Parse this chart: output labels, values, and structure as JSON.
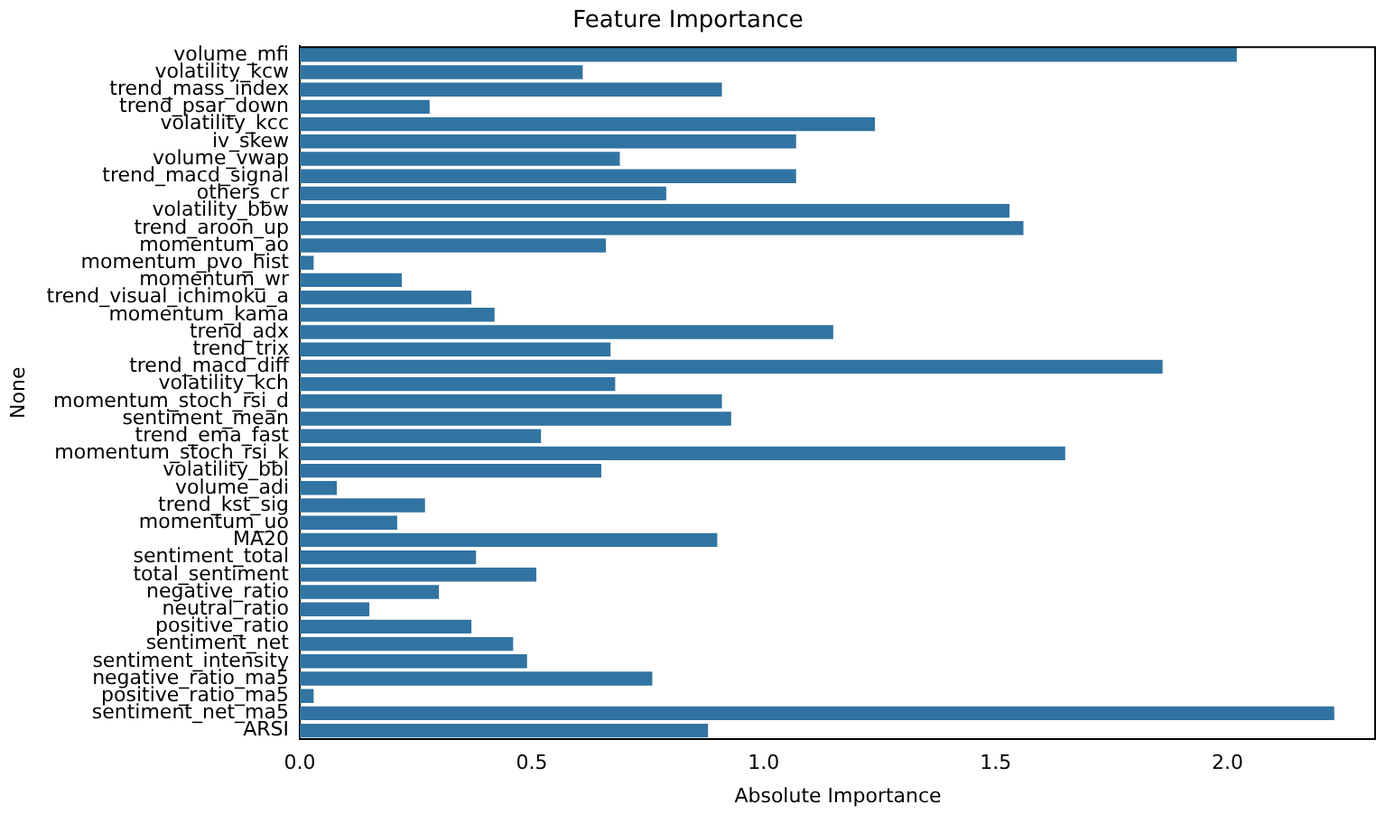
{
  "chart_data": {
    "type": "bar",
    "orientation": "horizontal",
    "title": "Feature Importance",
    "xlabel": "Absolute Importance",
    "ylabel": "None",
    "categories": [
      "volume_mfi",
      "volatility_kcw",
      "trend_mass_index",
      "trend_psar_down",
      "volatility_kcc",
      "iv_skew",
      "volume_vwap",
      "trend_macd_signal",
      "others_cr",
      "volatility_bbw",
      "trend_aroon_up",
      "momentum_ao",
      "momentum_pvo_hist",
      "momentum_wr",
      "trend_visual_ichimoku_a",
      "momentum_kama",
      "trend_adx",
      "trend_trix",
      "trend_macd_diff",
      "volatility_kch",
      "momentum_stoch_rsi_d",
      "sentiment_mean",
      "trend_ema_fast",
      "momentum_stoch_rsi_k",
      "volatility_bbl",
      "volume_adi",
      "trend_kst_sig",
      "momentum_uo",
      "MA20",
      "sentiment_total",
      "total_sentiment",
      "negative_ratio",
      "neutral_ratio",
      "positive_ratio",
      "sentiment_net",
      "sentiment_intensity",
      "negative_ratio_ma5",
      "positive_ratio_ma5",
      "sentiment_net_ma5",
      "ARSI"
    ],
    "values": [
      2.02,
      0.61,
      0.91,
      0.28,
      1.24,
      1.07,
      0.69,
      1.07,
      0.79,
      1.53,
      1.56,
      0.66,
      0.03,
      0.22,
      0.37,
      0.42,
      1.15,
      0.67,
      1.86,
      0.68,
      0.91,
      0.93,
      0.52,
      1.65,
      0.65,
      0.08,
      0.27,
      0.21,
      0.9,
      0.38,
      0.51,
      0.3,
      0.15,
      0.37,
      0.46,
      0.49,
      0.76,
      0.03,
      2.23,
      0.88
    ],
    "color": "#3274a1",
    "xlim": [
      0,
      2.32
    ],
    "xticks": [
      {
        "value": 0,
        "label": "0.0"
      },
      {
        "value": 0.5,
        "label": "0.5"
      },
      {
        "value": 1,
        "label": "1.0"
      },
      {
        "value": 1.5,
        "label": "1.5"
      },
      {
        "value": 2,
        "label": "2.0"
      }
    ],
    "grid": false,
    "legend": false
  }
}
